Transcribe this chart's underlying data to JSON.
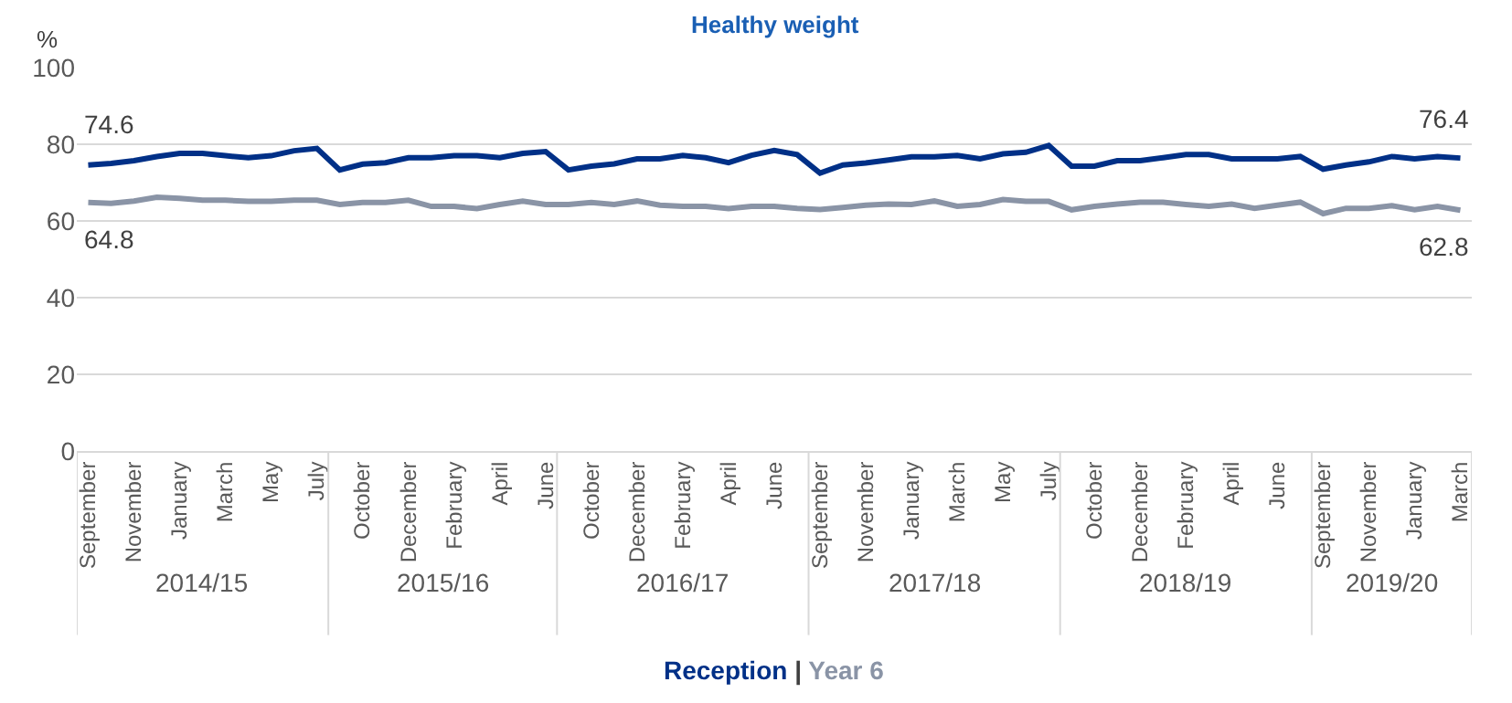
{
  "chart_data": {
    "type": "line",
    "title": "Healthy weight",
    "ylabel": "%",
    "categories": [
      "September",
      null,
      "November",
      null,
      "January",
      null,
      "March",
      null,
      "May",
      null,
      "July",
      null,
      "October",
      null,
      "December",
      null,
      "February",
      null,
      "April",
      null,
      "June",
      null,
      "October",
      null,
      "December",
      null,
      "February",
      null,
      "April",
      null,
      "June",
      null,
      "September",
      null,
      "November",
      null,
      "January",
      null,
      "March",
      null,
      "May",
      null,
      "July",
      null,
      "October",
      null,
      "December",
      null,
      "February",
      null,
      "April",
      null,
      "June",
      null,
      "September",
      null,
      "November",
      null,
      "January",
      null,
      "March"
    ],
    "series": [
      {
        "name": "Reception",
        "color": "#003087",
        "values": [
          74.6,
          75.0,
          75.7,
          76.8,
          77.6,
          77.6,
          77.0,
          76.5,
          77.0,
          78.3,
          78.9,
          73.3,
          74.8,
          75.2,
          76.5,
          76.5,
          77.0,
          77.0,
          76.5,
          77.6,
          78.1,
          73.3,
          74.3,
          74.9,
          76.2,
          76.2,
          77.1,
          76.5,
          75.2,
          77.1,
          78.4,
          77.3,
          72.5,
          74.6,
          75.1,
          75.9,
          76.7,
          76.7,
          77.1,
          76.2,
          77.5,
          77.9,
          79.7,
          74.3,
          74.3,
          75.7,
          75.7,
          76.5,
          77.3,
          77.3,
          76.2,
          76.2,
          76.2,
          76.8,
          73.5,
          74.6,
          75.4,
          76.8,
          76.2,
          76.8,
          76.4
        ],
        "value_labels": [
          "74.6",
          null,
          null,
          null,
          null,
          null,
          null,
          null,
          null,
          null,
          null,
          null,
          null,
          null,
          null,
          null,
          null,
          null,
          null,
          null,
          null,
          null,
          null,
          null,
          null,
          null,
          null,
          null,
          null,
          null,
          null,
          null,
          null,
          null,
          null,
          null,
          null,
          null,
          null,
          null,
          null,
          null,
          null,
          null,
          null,
          null,
          null,
          null,
          null,
          null,
          null,
          null,
          null,
          null,
          null,
          null,
          null,
          null,
          null,
          null,
          "76.4"
        ]
      },
      {
        "name": "Year 6",
        "color": "#8a94a6",
        "values": [
          64.8,
          64.6,
          65.2,
          66.2,
          65.9,
          65.4,
          65.4,
          65.1,
          65.1,
          65.4,
          65.4,
          64.3,
          64.8,
          64.8,
          65.4,
          63.8,
          63.8,
          63.2,
          64.3,
          65.2,
          64.3,
          64.3,
          64.8,
          64.3,
          65.2,
          64.1,
          63.8,
          63.8,
          63.2,
          63.8,
          63.8,
          63.3,
          63.0,
          63.5,
          64.1,
          64.4,
          64.3,
          65.2,
          63.8,
          64.3,
          65.6,
          65.1,
          65.1,
          62.9,
          63.8,
          64.4,
          64.9,
          64.9,
          64.3,
          63.8,
          64.4,
          63.3,
          64.1,
          64.9,
          61.9,
          63.3,
          63.3,
          64.0,
          62.9,
          63.8,
          62.8
        ],
        "value_labels": [
          "64.8",
          null,
          null,
          null,
          null,
          null,
          null,
          null,
          null,
          null,
          null,
          null,
          null,
          null,
          null,
          null,
          null,
          null,
          null,
          null,
          null,
          null,
          null,
          null,
          null,
          null,
          null,
          null,
          null,
          null,
          null,
          null,
          null,
          null,
          null,
          null,
          null,
          null,
          null,
          null,
          null,
          null,
          null,
          null,
          null,
          null,
          null,
          null,
          null,
          null,
          null,
          null,
          null,
          null,
          null,
          null,
          null,
          null,
          null,
          null,
          "62.8"
        ]
      }
    ],
    "annotations": [
      "2014/15",
      "2015/16",
      "2016/17",
      "2017/18",
      "2018/19",
      "2019/20",
      "|"
    ],
    "ylim": [
      0,
      100
    ],
    "yticks": [
      0,
      20,
      40,
      60,
      80,
      100
    ],
    "grid": "y",
    "marker": "none",
    "line_style": "solid"
  }
}
